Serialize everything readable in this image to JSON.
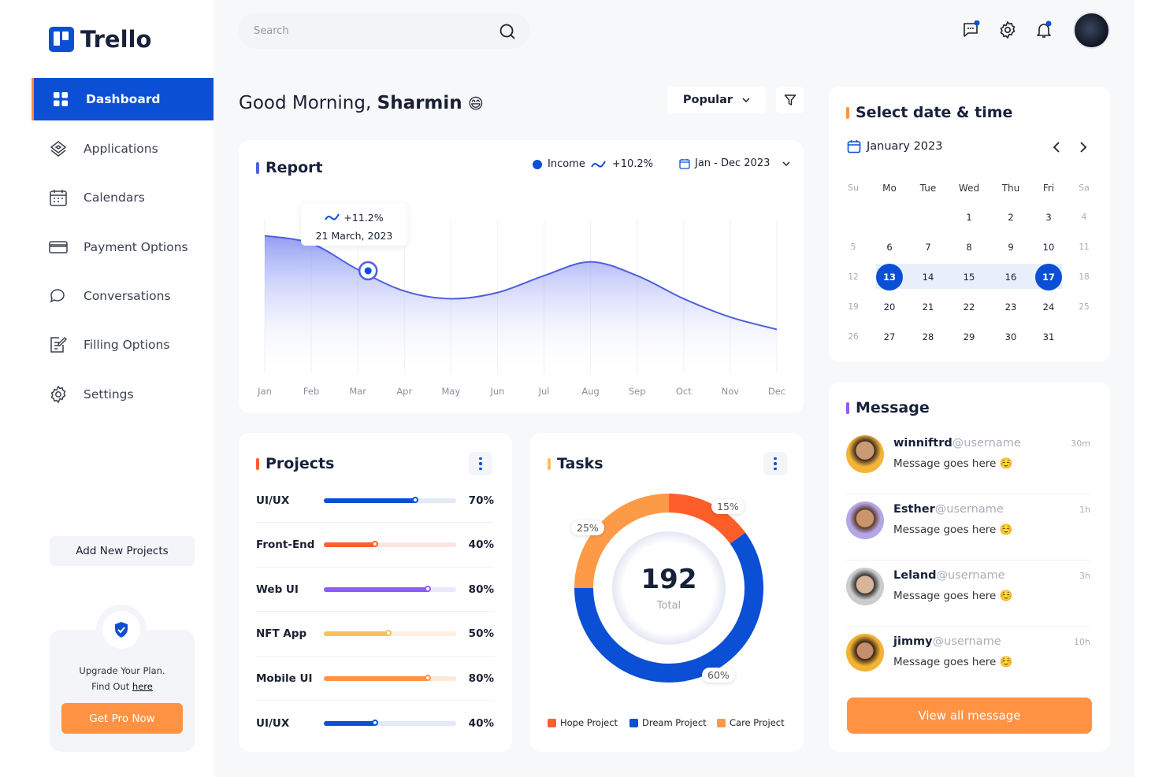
{
  "app": {
    "name": "Trello"
  },
  "sidebar": {
    "items": [
      {
        "label": "Dashboard",
        "icon": "grid-icon",
        "active": true
      },
      {
        "label": "Applications",
        "icon": "layers-icon"
      },
      {
        "label": "Calendars",
        "icon": "calendar-icon"
      },
      {
        "label": "Payment Options",
        "icon": "credit-card-icon"
      },
      {
        "label": "Conversations",
        "icon": "chat-icon"
      },
      {
        "label": "Filling Options",
        "icon": "edit-document-icon"
      },
      {
        "label": "Settings",
        "icon": "gear-icon"
      }
    ],
    "add_project": "Add New Projects",
    "upgrade": {
      "line1": "Upgrade Your Plan.",
      "line2": "Find Out ",
      "link": "here",
      "button": "Get Pro Now"
    }
  },
  "header": {
    "search_placeholder": "Search",
    "notification_dot": "#0b50d4"
  },
  "greeting": {
    "text": "Good Morning,",
    "name": "Sharmin",
    "emoji": "😄"
  },
  "toolbar": {
    "sort": "Popular"
  },
  "report": {
    "title": "Report",
    "legend": "Income",
    "change": "+10.2%",
    "range": "Jan - Dec 2023",
    "tooltip": {
      "change": "+11.2%",
      "date": "21 March, 2023"
    }
  },
  "chart_data": {
    "type": "area",
    "title": "Report",
    "categories": [
      "Jan",
      "Feb",
      "Mar",
      "Apr",
      "May",
      "Jun",
      "Jul",
      "Aug",
      "Sep",
      "Oct",
      "Nov",
      "Dec"
    ],
    "series": [
      {
        "name": "Income",
        "values": [
          90,
          85,
          68,
          54,
          49,
          53,
          64,
          73,
          64,
          49,
          37,
          29
        ]
      }
    ],
    "ylim": [
      0,
      100
    ],
    "grid": "vertical",
    "color": "#4f5fe0"
  },
  "projects": {
    "title": "Projects",
    "items": [
      {
        "name": "UI/UX",
        "value": 70,
        "color": "#0b50d4",
        "track": "#e3e9f7"
      },
      {
        "name": "Front-End",
        "value": 40,
        "color": "#ff5f2e",
        "track": "#fde6df"
      },
      {
        "name": "Web UI",
        "value": 80,
        "color": "#8b5cf6",
        "track": "#ede7fb"
      },
      {
        "name": "NFT App",
        "value": 50,
        "color": "#fbbf5a",
        "track": "#fdf1dc"
      },
      {
        "name": "Mobile UI",
        "value": 80,
        "color": "#ff9343",
        "track": "#fde9da"
      },
      {
        "name": "UI/UX",
        "value": 40,
        "color": "#0b50d4",
        "track": "#e3e9f7"
      }
    ]
  },
  "tasks": {
    "title": "Tasks",
    "total": "192",
    "total_label": "Total",
    "segments": [
      {
        "name": "Hope Project",
        "value": 15,
        "label": "15%",
        "color": "#fe5e2a"
      },
      {
        "name": "Dream Project",
        "value": 60,
        "label": "60%",
        "color": "#0b50d4"
      },
      {
        "name": "Care Project",
        "value": 25,
        "label": "25%",
        "color": "#fd9a47"
      }
    ]
  },
  "calendar": {
    "title": "Select date & time",
    "month": "January 2023",
    "weekdays": [
      "Su",
      "Mo",
      "Tue",
      "Wed",
      "Thu",
      "Fri",
      "Sa"
    ],
    "weeks": [
      [
        "",
        "",
        "",
        "1",
        "2",
        "3",
        "4"
      ],
      [
        "5",
        "6",
        "7",
        "8",
        "9",
        "10",
        "11"
      ],
      [
        "12",
        "13",
        "14",
        "15",
        "16",
        "17",
        "18"
      ],
      [
        "19",
        "20",
        "21",
        "22",
        "23",
        "24",
        "25"
      ],
      [
        "26",
        "27",
        "28",
        "29",
        "30",
        "31",
        ""
      ]
    ],
    "range_start": "13",
    "range_end": "17"
  },
  "messages": {
    "title": "Message",
    "items": [
      {
        "name": "winniftrd",
        "handle": "@username",
        "text": "Message goes here",
        "emoji": "☺️",
        "time": "30m"
      },
      {
        "name": "Esther",
        "handle": "@username",
        "text": "Message goes here",
        "emoji": "☺️",
        "time": "1h"
      },
      {
        "name": "Leland",
        "handle": "@username",
        "text": "Message goes here",
        "emoji": "☺️",
        "time": "3h"
      },
      {
        "name": "jimmy",
        "handle": "@username",
        "text": "Message goes here",
        "emoji": "☺️",
        "time": "10h"
      }
    ],
    "view_all": "View all message"
  }
}
